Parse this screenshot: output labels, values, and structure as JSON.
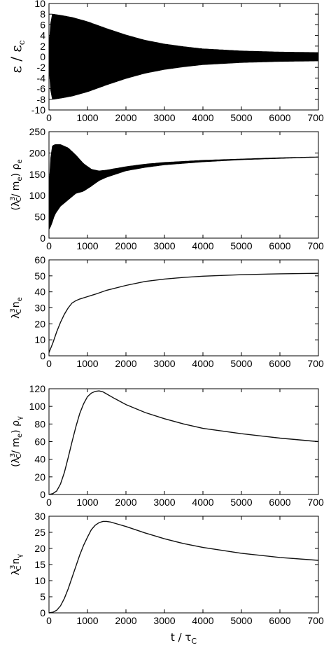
{
  "chart_data": [
    {
      "type": "line",
      "id": "panel-1",
      "ylabel": "ε / ε",
      "ylabel_sub": "c",
      "xlim": [
        0,
        7000
      ],
      "ylim": [
        -10,
        10
      ],
      "x_ticks": [
        0,
        1000,
        2000,
        3000,
        4000,
        5000,
        6000,
        7000
      ],
      "y_ticks": [
        -10,
        -8,
        -6,
        -4,
        -2,
        0,
        2,
        4,
        6,
        8,
        10
      ],
      "band": {
        "center": 0,
        "x": [
          0,
          60,
          120,
          300,
          600,
          1000,
          1500,
          2000,
          2500,
          3000,
          3500,
          4000,
          5000,
          6000,
          7000
        ],
        "half_width": [
          2,
          8,
          8,
          7.8,
          7.4,
          6.6,
          5.3,
          4.1,
          3.1,
          2.4,
          1.9,
          1.5,
          1.1,
          0.9,
          0.8
        ]
      }
    },
    {
      "type": "line",
      "id": "panel-2",
      "ylabel": "(λ / m ) ρ",
      "ylabel_parts": [
        "(λ",
        "3",
        "C",
        "/ m",
        "e",
        ") ρ",
        "e"
      ],
      "xlim": [
        0,
        7000
      ],
      "ylim": [
        0,
        250
      ],
      "x_ticks": [
        0,
        1000,
        2000,
        3000,
        4000,
        5000,
        6000,
        7000
      ],
      "y_ticks": [
        0,
        50,
        100,
        150,
        200,
        250
      ],
      "band": {
        "x": [
          0,
          60,
          150,
          300,
          500,
          700,
          900,
          1100,
          1300,
          1500,
          2000,
          2500,
          3000,
          4000,
          5000,
          6000,
          7000
        ],
        "upper": [
          120,
          215,
          220,
          220,
          212,
          195,
          175,
          162,
          158,
          160,
          168,
          174,
          178,
          183,
          186,
          189,
          191
        ],
        "lower": [
          20,
          30,
          55,
          75,
          90,
          105,
          110,
          122,
          135,
          143,
          158,
          166,
          172,
          179,
          184,
          187,
          190
        ]
      }
    },
    {
      "type": "line",
      "id": "panel-3",
      "ylabel": "λ n",
      "ylabel_parts": [
        "λ",
        "3",
        "C",
        "n",
        "e"
      ],
      "xlim": [
        0,
        7000
      ],
      "ylim": [
        0,
        60
      ],
      "x_ticks": [
        0,
        1000,
        2000,
        3000,
        4000,
        5000,
        6000,
        7000
      ],
      "y_ticks": [
        0,
        10,
        20,
        30,
        40,
        50,
        60
      ],
      "series": [
        {
          "x": [
            0,
            100,
            200,
            300,
            400,
            500,
            600,
            700,
            800,
            1000,
            1200,
            1500,
            2000,
            2500,
            3000,
            3500,
            4000,
            5000,
            6000,
            7000
          ],
          "y": [
            2,
            8,
            15,
            21,
            26,
            30,
            33,
            34.5,
            35.5,
            37,
            38.5,
            41,
            44,
            46.5,
            48,
            49,
            49.8,
            50.7,
            51.3,
            51.6
          ]
        }
      ]
    },
    {
      "type": "line",
      "id": "panel-4",
      "ylabel": "(λ / m ) ρ",
      "ylabel_parts": [
        "(λ",
        "3",
        "C",
        "/ m",
        "e",
        ") ρ",
        "γ"
      ],
      "xlim": [
        0,
        7000
      ],
      "ylim": [
        0,
        120
      ],
      "x_ticks": [
        0,
        1000,
        2000,
        3000,
        4000,
        5000,
        6000,
        7000
      ],
      "y_ticks": [
        0,
        20,
        40,
        60,
        80,
        100,
        120
      ],
      "series": [
        {
          "x": [
            0,
            100,
            200,
            300,
            400,
            500,
            600,
            700,
            800,
            900,
            1000,
            1100,
            1200,
            1300,
            1400,
            1500,
            1700,
            2000,
            2500,
            3000,
            3500,
            4000,
            5000,
            6000,
            7000
          ],
          "y": [
            0,
            1,
            4,
            12,
            25,
            42,
            60,
            77,
            92,
            103,
            111,
            115,
            117,
            117.5,
            116.5,
            114,
            109,
            102,
            93,
            86,
            80,
            75,
            69,
            64,
            60
          ]
        }
      ]
    },
    {
      "type": "line",
      "id": "panel-5",
      "ylabel": "λ n",
      "ylabel_parts": [
        "λ",
        "3",
        "C",
        "n",
        "γ"
      ],
      "xlabel": "t / τ",
      "xlabel_sub": "C",
      "xlim": [
        0,
        7000
      ],
      "ylim": [
        0,
        30
      ],
      "x_ticks": [
        0,
        1000,
        2000,
        3000,
        4000,
        5000,
        6000,
        7000
      ],
      "y_ticks": [
        0,
        5,
        10,
        15,
        20,
        25,
        30
      ],
      "series": [
        {
          "x": [
            0,
            100,
            200,
            300,
            400,
            500,
            600,
            700,
            800,
            900,
            1000,
            1100,
            1200,
            1300,
            1400,
            1500,
            1600,
            1800,
            2000,
            2500,
            3000,
            3500,
            4000,
            5000,
            6000,
            7000
          ],
          "y": [
            0,
            0.2,
            0.8,
            2.2,
            4.5,
            7.5,
            11,
            14.5,
            18,
            21,
            23.5,
            25.8,
            27.2,
            28,
            28.4,
            28.4,
            28.2,
            27.5,
            26.8,
            24.8,
            23,
            21.5,
            20.3,
            18.5,
            17.2,
            16.3
          ]
        }
      ]
    }
  ]
}
